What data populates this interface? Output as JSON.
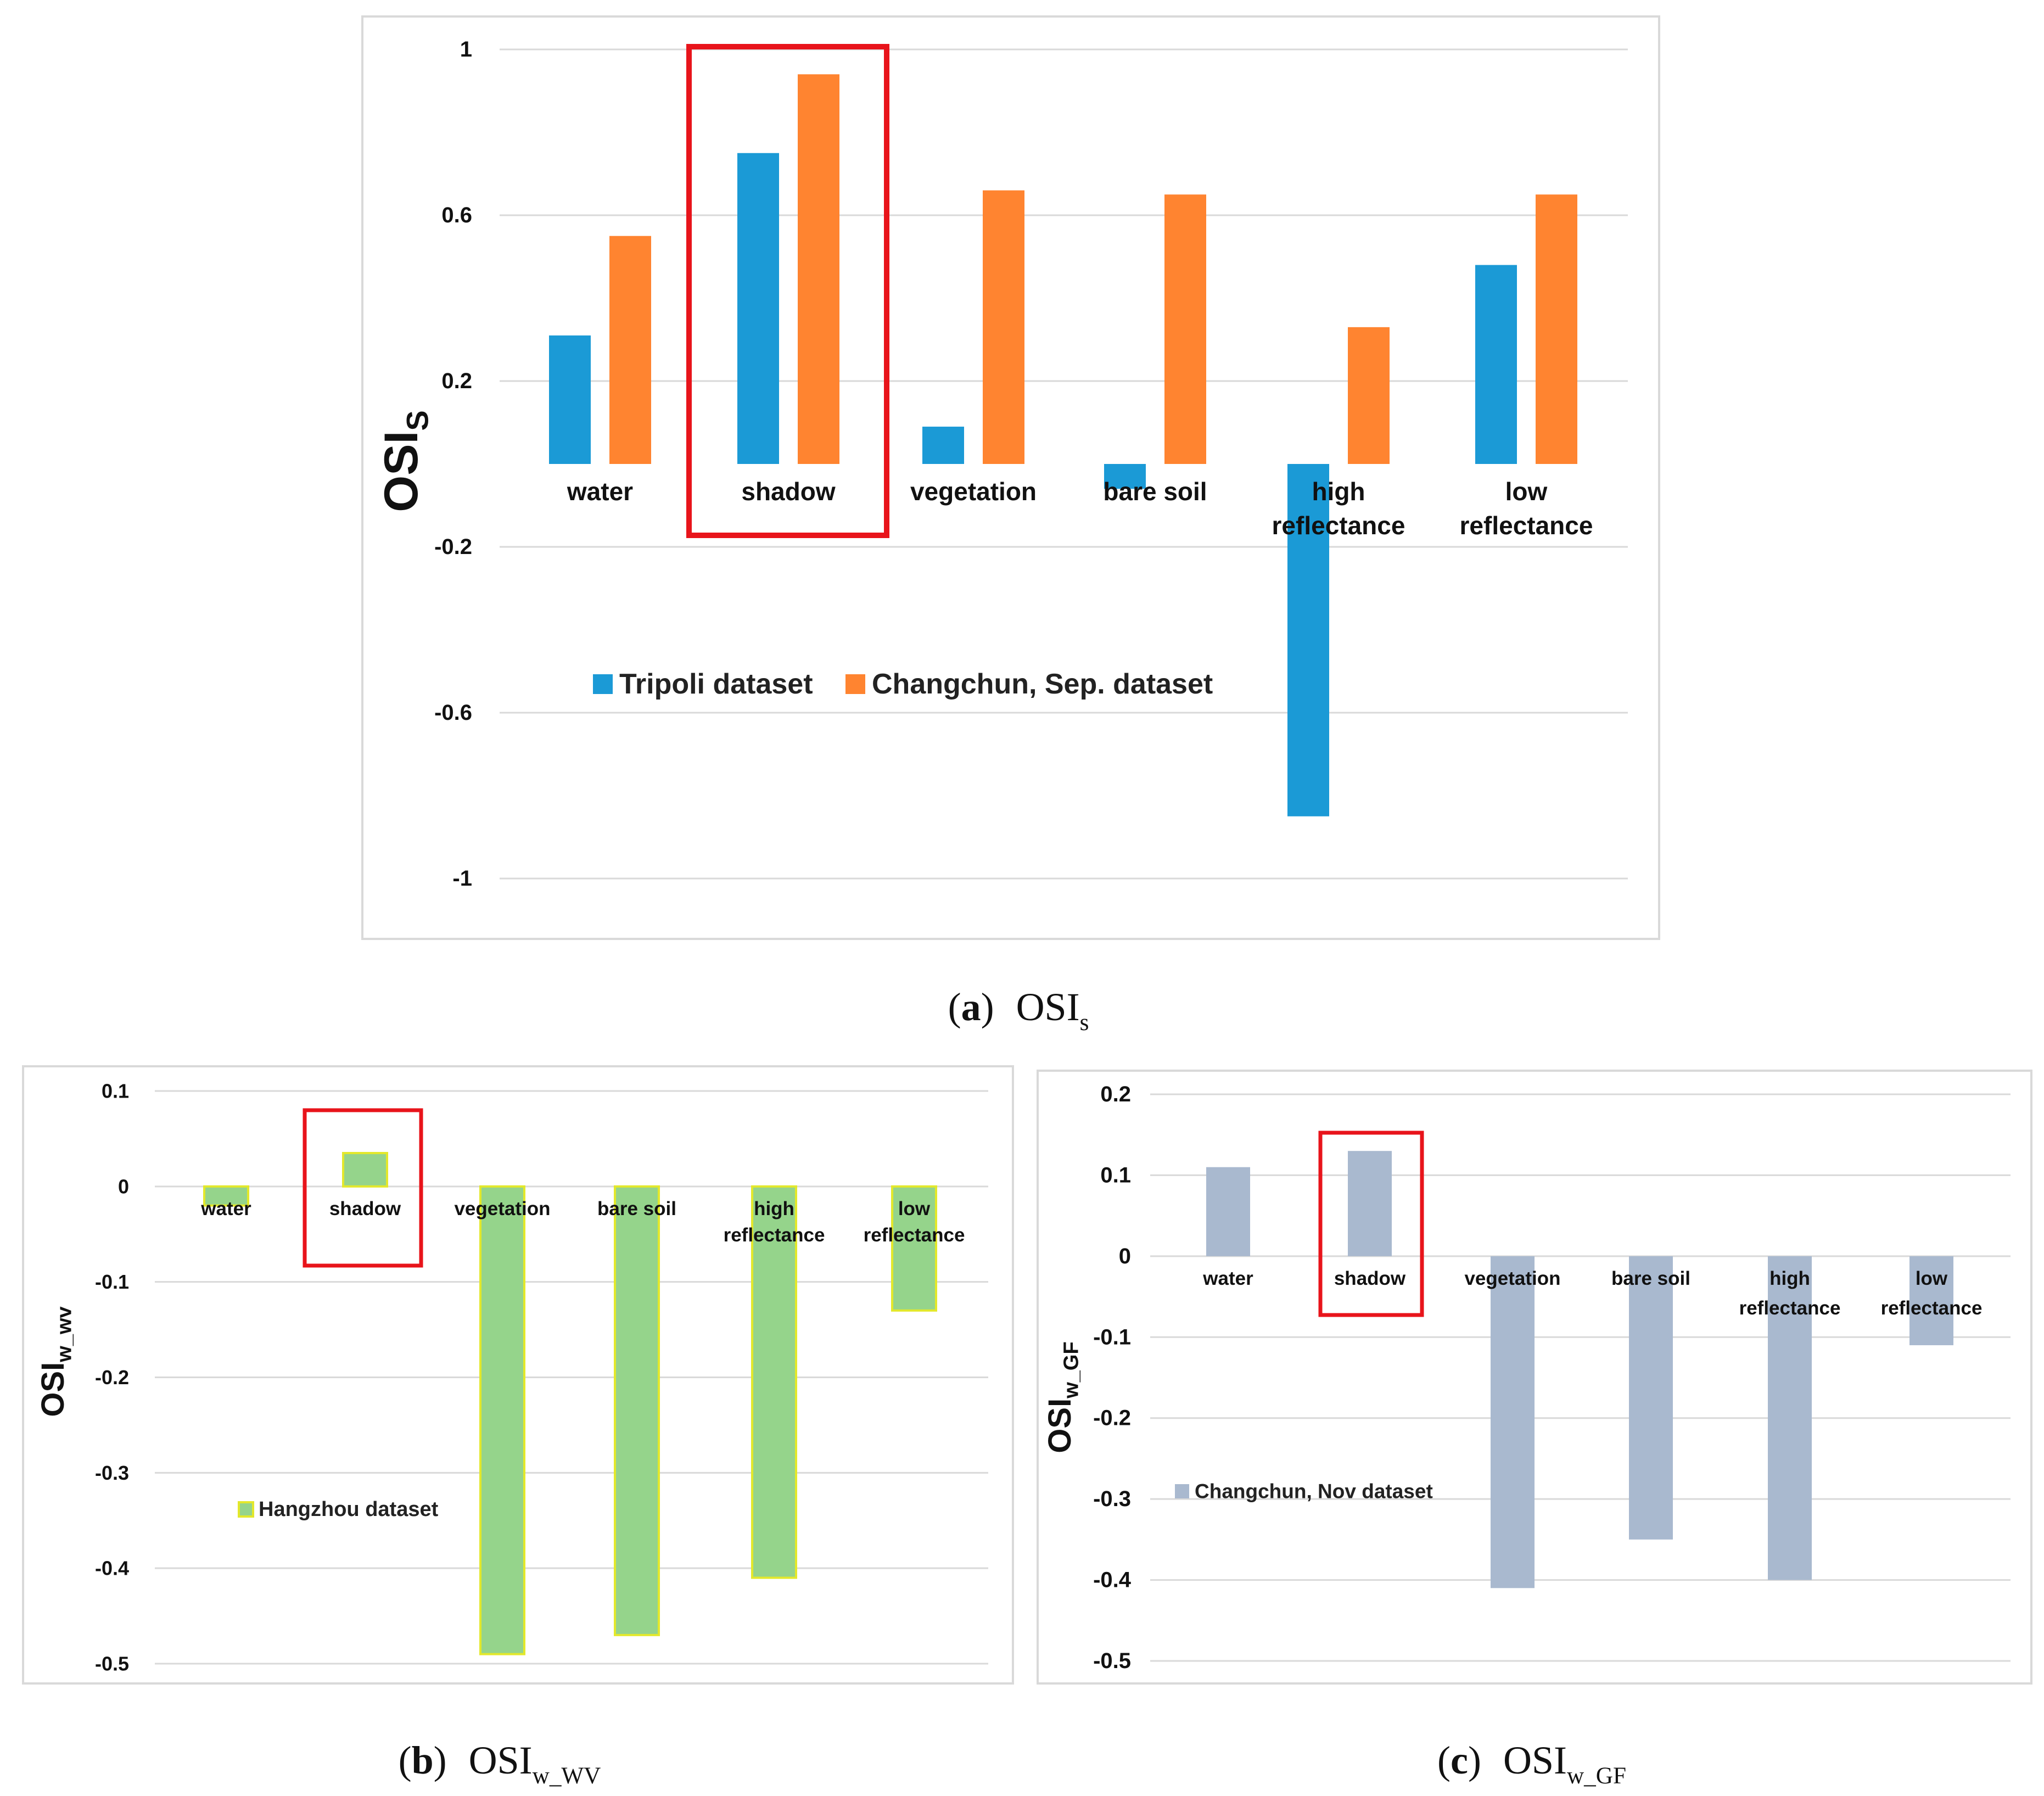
{
  "chart_data": [
    {
      "type": "bar",
      "panel": "a",
      "categories": [
        [
          "water"
        ],
        [
          "shadow"
        ],
        [
          "vegetation"
        ],
        [
          "bare soil"
        ],
        [
          "high",
          "reflectance"
        ],
        [
          "low",
          "reflectance"
        ]
      ],
      "series": [
        {
          "name": "Tripoli dataset",
          "color": "#1B9AD6",
          "values": [
            0.31,
            0.75,
            0.09,
            -0.06,
            -0.85,
            0.48
          ]
        },
        {
          "name": "Changchun, Sep. dataset",
          "color": "#FF8430",
          "values": [
            0.55,
            0.94,
            0.66,
            0.65,
            0.33,
            0.65
          ]
        }
      ],
      "ylim": [
        -1,
        1
      ],
      "ticks": [
        1,
        0.6,
        0.2,
        -0.2,
        -0.6,
        -1
      ],
      "tick_labels": [
        "1",
        "0.6",
        "0.2",
        "-0.2",
        "-0.6",
        "-1"
      ],
      "ylabel": {
        "main": "OSI",
        "sub": "S"
      },
      "highlight_category": 1,
      "highlight_color": "#E8141B",
      "legend": "center-left",
      "caption": {
        "letter": "a",
        "main": "OSI",
        "sub": "s"
      }
    },
    {
      "type": "bar",
      "panel": "b",
      "categories": [
        [
          "water"
        ],
        [
          "shadow"
        ],
        [
          "vegetation"
        ],
        [
          "bare soil"
        ],
        [
          "high",
          "reflectance"
        ],
        [
          "low",
          "reflectance"
        ]
      ],
      "series": [
        {
          "name": "Hangzhou dataset",
          "color": "#95D48B",
          "edge": "#E3E82B",
          "values": [
            -0.02,
            0.035,
            -0.49,
            -0.47,
            -0.41,
            -0.13
          ]
        }
      ],
      "ylim": [
        -0.5,
        0.1
      ],
      "ticks": [
        0.1,
        0,
        -0.1,
        -0.2,
        -0.3,
        -0.4,
        -0.5
      ],
      "tick_labels": [
        "0.1",
        "0",
        "-0.1",
        "-0.2",
        "-0.3",
        "-0.4",
        "-0.5"
      ],
      "ylabel": {
        "main": "OSI",
        "sub": "w_wv"
      },
      "highlight_category": 1,
      "highlight_color": "#E8141B",
      "legend": "lower-left",
      "caption": {
        "letter": "b",
        "main": "OSI",
        "sub": "w_WV"
      }
    },
    {
      "type": "bar",
      "panel": "c",
      "categories": [
        [
          "water"
        ],
        [
          "shadow"
        ],
        [
          "vegetation"
        ],
        [
          "bare soil"
        ],
        [
          "high",
          "reflectance"
        ],
        [
          "low",
          "reflectance"
        ]
      ],
      "series": [
        {
          "name": "Changchun, Nov dataset",
          "color": "#A9B9CF",
          "values": [
            0.11,
            0.13,
            -0.41,
            -0.35,
            -0.4,
            -0.11
          ]
        }
      ],
      "ylim": [
        -0.5,
        0.2
      ],
      "ticks": [
        0.2,
        0.1,
        0,
        -0.1,
        -0.2,
        -0.3,
        -0.4,
        -0.5
      ],
      "tick_labels": [
        "0.2",
        "0.1",
        "0",
        "-0.1",
        "-0.2",
        "-0.3",
        "-0.4",
        "-0.5"
      ],
      "ylabel": {
        "main": "OSI",
        "sub": "w_GF"
      },
      "highlight_category": 1,
      "highlight_color": "#E8141B",
      "legend": "lower-left",
      "caption": {
        "letter": "c",
        "main": "OSI",
        "sub": "w_GF"
      }
    }
  ]
}
